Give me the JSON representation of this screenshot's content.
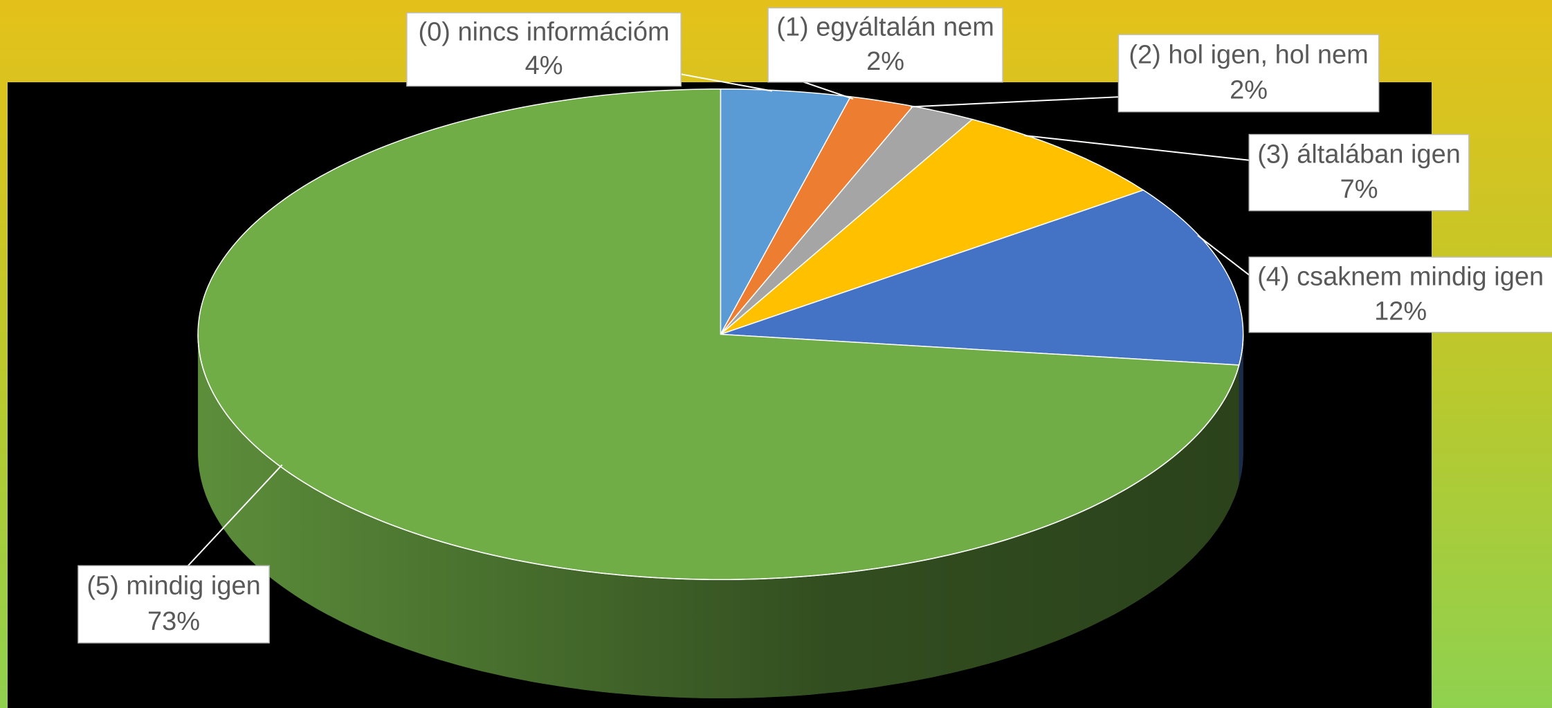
{
  "chart_data": {
    "type": "pie",
    "categories": [
      "(0) nincs információm",
      "(1) egyáltalán nem",
      "(2) hol igen, hol nem",
      "(3) általában igen",
      "(4) csaknem mindig igen",
      "(5) mindig igen"
    ],
    "values": [
      4,
      2,
      2,
      7,
      12,
      73
    ],
    "value_labels": [
      "4%",
      "2%",
      "2%",
      "7%",
      "12%",
      "73%"
    ],
    "colors": [
      "#5b9bd5",
      "#ed7d31",
      "#a5a5a5",
      "#ffc000",
      "#4472c4",
      "#70ad47"
    ]
  }
}
